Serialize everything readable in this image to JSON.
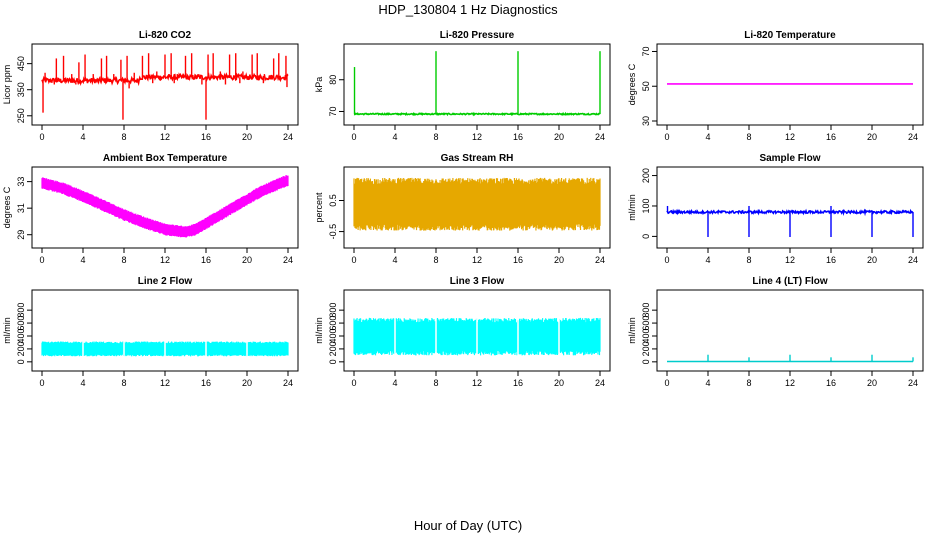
{
  "title": "HDP_130804  1 Hz Diagnostics",
  "xlabel": "Hour of Day (UTC)",
  "chart_data": [
    {
      "type": "line",
      "title": "Li-820 CO2",
      "ylabel": "Licor ppm",
      "color": "#ff0000",
      "xlim": [
        0,
        24
      ],
      "ylim": [
        230,
        510
      ],
      "xticks": [
        0,
        4,
        8,
        12,
        16,
        20,
        24
      ],
      "yticks": [
        250,
        350,
        450
      ],
      "baseline": 390,
      "noise": 10,
      "spikes_up": [
        [
          0.3,
          415
        ],
        [
          1.4,
          470
        ],
        [
          2.1,
          480
        ],
        [
          2.9,
          410
        ],
        [
          3.6,
          455
        ],
        [
          4.2,
          485
        ],
        [
          5.0,
          410
        ],
        [
          5.8,
          470
        ],
        [
          6.3,
          480
        ],
        [
          7.0,
          410
        ],
        [
          7.7,
          465
        ],
        [
          8.3,
          480
        ],
        [
          9.0,
          415
        ],
        [
          9.8,
          480
        ],
        [
          10.4,
          490
        ],
        [
          11.2,
          420
        ],
        [
          12.0,
          485
        ],
        [
          12.6,
          490
        ],
        [
          13.2,
          410
        ],
        [
          14.0,
          480
        ],
        [
          14.6,
          490
        ],
        [
          15.3,
          410
        ],
        [
          16.2,
          485
        ],
        [
          16.7,
          490
        ],
        [
          17.4,
          420
        ],
        [
          18.3,
          485
        ],
        [
          18.9,
          490
        ],
        [
          19.6,
          420
        ],
        [
          20.5,
          485
        ],
        [
          21.0,
          490
        ],
        [
          21.7,
          410
        ],
        [
          22.6,
          470
        ],
        [
          23.1,
          490
        ],
        [
          23.8,
          480
        ]
      ],
      "spikes_down": [
        [
          0.1,
          262
        ],
        [
          1.2,
          370
        ],
        [
          3.3,
          370
        ],
        [
          5.5,
          375
        ],
        [
          7.9,
          235
        ],
        [
          8.5,
          355
        ],
        [
          10.8,
          375
        ],
        [
          12.9,
          375
        ],
        [
          15.6,
          370
        ],
        [
          16.0,
          235
        ],
        [
          17.9,
          370
        ],
        [
          19.3,
          375
        ],
        [
          21.6,
          375
        ],
        [
          23.9,
          360
        ]
      ],
      "segments": [
        [
          0,
          9.5,
          385
        ],
        [
          9.5,
          24,
          398
        ]
      ]
    },
    {
      "type": "line",
      "title": "Li-820 Pressure",
      "ylabel": "kPa",
      "color": "#00cc00",
      "xlim": [
        0,
        24
      ],
      "ylim": [
        67,
        90
      ],
      "xticks": [
        0,
        4,
        8,
        12,
        16,
        20,
        24
      ],
      "yticks": [
        70,
        80
      ],
      "baseline": 69.2,
      "noise": 0.2,
      "spikes_up": [
        [
          0.05,
          84
        ],
        [
          8.0,
          89
        ],
        [
          16.0,
          89
        ],
        [
          24.0,
          89
        ]
      ],
      "spikes_down": []
    },
    {
      "type": "line",
      "title": "Li-820 Temperature",
      "ylabel": "degrees C",
      "color": "#ff00ff",
      "xlim": [
        0,
        24
      ],
      "ylim": [
        30,
        72
      ],
      "xticks": [
        0,
        4,
        8,
        12,
        16,
        20,
        24
      ],
      "yticks": [
        30,
        50,
        70
      ],
      "baseline": 51.3,
      "noise": 0,
      "spikes_up": [],
      "spikes_down": []
    },
    {
      "type": "area",
      "title": "Ambient Box Temperature",
      "ylabel": "degrees C",
      "color": "#ff00ff",
      "xlim": [
        0,
        24
      ],
      "ylim": [
        28.3,
        33.8
      ],
      "xticks": [
        0,
        4,
        8,
        12,
        16,
        20,
        24
      ],
      "yticks": [
        29,
        31,
        33
      ],
      "center": [
        [
          0,
          32.9
        ],
        [
          2,
          32.5
        ],
        [
          4,
          31.9
        ],
        [
          6,
          31.2
        ],
        [
          8,
          30.5
        ],
        [
          10,
          29.9
        ],
        [
          12,
          29.4
        ],
        [
          14,
          29.2
        ],
        [
          15,
          29.4
        ],
        [
          17,
          30.3
        ],
        [
          19,
          31.2
        ],
        [
          21,
          32.1
        ],
        [
          23,
          32.8
        ],
        [
          24,
          33.1
        ]
      ],
      "band": 0.45
    },
    {
      "type": "area",
      "title": "Gas Stream RH",
      "ylabel": "percent",
      "color": "#e6a800",
      "xlim": [
        0,
        24
      ],
      "ylim": [
        -0.9,
        1.45
      ],
      "xticks": [
        0,
        4,
        8,
        12,
        16,
        20,
        24
      ],
      "yticks": [
        -0.5,
        0.5
      ],
      "center": [
        [
          0,
          0.38
        ],
        [
          24,
          0.38
        ]
      ],
      "band": 0.85
    },
    {
      "type": "line",
      "title": "Sample Flow",
      "ylabel": "ml/min",
      "color": "#0000ff",
      "xlim": [
        0,
        24
      ],
      "ylim": [
        -25,
        215
      ],
      "xticks": [
        0,
        4,
        8,
        12,
        16,
        20,
        24
      ],
      "yticks": [
        0,
        100,
        200
      ],
      "baseline": 80,
      "noise": 4,
      "spikes_up": [
        [
          0.05,
          100
        ],
        [
          8.0,
          100
        ],
        [
          16.0,
          100
        ]
      ],
      "spikes_down": [
        [
          4.0,
          -2
        ],
        [
          8.0,
          -2
        ],
        [
          12.0,
          -2
        ],
        [
          16.0,
          -2
        ],
        [
          20.0,
          -2
        ],
        [
          24.0,
          -2
        ]
      ]
    },
    {
      "type": "area",
      "title": "Line 2 Flow",
      "ylabel": "ml/min",
      "color": "#00ffff",
      "xlim": [
        0,
        24
      ],
      "ylim": [
        -80,
        1050
      ],
      "xticks": [
        0,
        4,
        8,
        12,
        16,
        20,
        24
      ],
      "yticks": [
        0,
        200,
        400,
        600,
        800
      ],
      "center": [
        [
          0,
          200
        ],
        [
          24,
          200
        ]
      ],
      "band": 115,
      "gaps": [
        4,
        8,
        12,
        16,
        20
      ]
    },
    {
      "type": "area",
      "title": "Line 3 Flow",
      "ylabel": "ml/min",
      "color": "#00ffff",
      "xlim": [
        0,
        24
      ],
      "ylim": [
        -80,
        1050
      ],
      "xticks": [
        0,
        4,
        8,
        12,
        16,
        20,
        24
      ],
      "yticks": [
        0,
        200,
        400,
        600,
        800
      ],
      "center": [
        [
          0,
          390
        ],
        [
          24,
          390
        ]
      ],
      "band": 290,
      "gaps": [
        4,
        8,
        12,
        16,
        20
      ]
    },
    {
      "type": "line",
      "title": "Line 4 (LT) Flow",
      "ylabel": "ml/min",
      "color": "#00cccc",
      "xlim": [
        0,
        24
      ],
      "ylim": [
        -80,
        1050
      ],
      "xticks": [
        0,
        4,
        8,
        12,
        16,
        20,
        24
      ],
      "yticks": [
        0,
        200,
        400,
        600,
        800
      ],
      "baseline": 5,
      "noise": 0,
      "spikes_up": [
        [
          4.0,
          110
        ],
        [
          8.0,
          70
        ],
        [
          12.0,
          110
        ],
        [
          16.0,
          70
        ],
        [
          20.0,
          110
        ],
        [
          24.0,
          70
        ]
      ],
      "spikes_down": []
    }
  ]
}
